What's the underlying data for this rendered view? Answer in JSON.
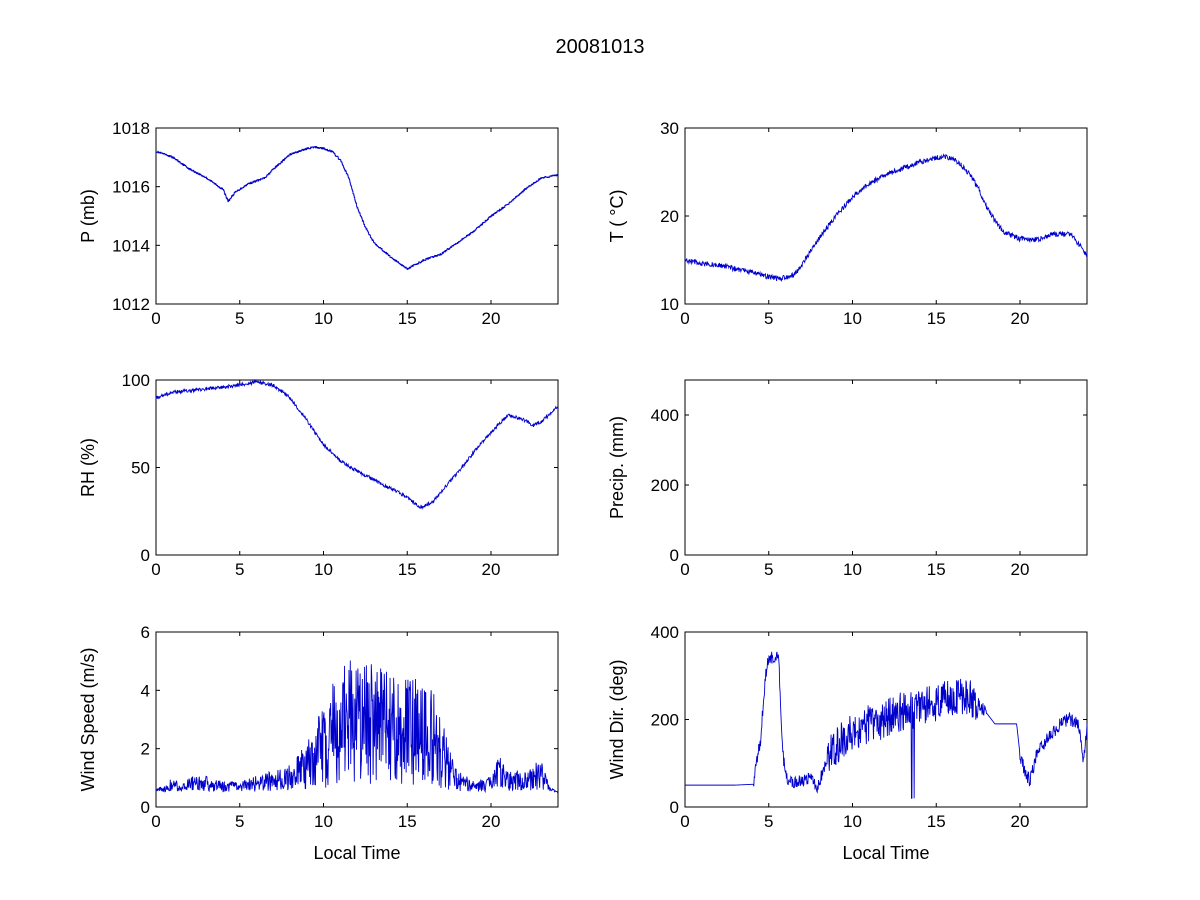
{
  "figure": {
    "title": "20081013",
    "line_color": "#0000cc"
  },
  "chart_data": [
    {
      "id": "pressure",
      "type": "line",
      "xlabel": "",
      "ylabel": "P (mb)",
      "xlim": [
        0,
        24
      ],
      "ylim": [
        1012,
        1018
      ],
      "xticks": [
        0,
        5,
        10,
        15,
        20
      ],
      "yticks": [
        1012,
        1014,
        1016,
        1018
      ],
      "grid": false,
      "noise": 0.03,
      "steps": true,
      "x": [
        0,
        1,
        2,
        3,
        3.5,
        4,
        4.3,
        4.7,
        5.5,
        6,
        6.5,
        7,
        8,
        9,
        9.5,
        10,
        10.5,
        11,
        11.5,
        12,
        12.5,
        13,
        14,
        14.5,
        15,
        15.5,
        16,
        17,
        18,
        19,
        20,
        21,
        22,
        23,
        24
      ],
      "y": [
        1017.2,
        1017.0,
        1016.6,
        1016.3,
        1016.1,
        1015.9,
        1015.5,
        1015.8,
        1016.1,
        1016.2,
        1016.3,
        1016.6,
        1017.1,
        1017.3,
        1017.35,
        1017.3,
        1017.2,
        1016.9,
        1016.3,
        1015.3,
        1014.6,
        1014.1,
        1013.6,
        1013.4,
        1013.2,
        1013.35,
        1013.5,
        1013.7,
        1014.1,
        1014.5,
        1015.0,
        1015.4,
        1015.9,
        1016.3,
        1016.4
      ]
    },
    {
      "id": "temperature",
      "type": "line",
      "xlabel": "",
      "ylabel": "T ( °C)",
      "xlim": [
        0,
        24
      ],
      "ylim": [
        10,
        30
      ],
      "xticks": [
        0,
        5,
        10,
        15,
        20
      ],
      "yticks": [
        10,
        20,
        30
      ],
      "grid": false,
      "noise": 0.3,
      "steps": false,
      "x": [
        0,
        1,
        2,
        3,
        4,
        5,
        5.5,
        6,
        6.5,
        7,
        8,
        9,
        10,
        11,
        12,
        13,
        14,
        15,
        15.5,
        16,
        16.5,
        17,
        17.5,
        18,
        18.5,
        19,
        20,
        21,
        22,
        23,
        24
      ],
      "y": [
        15,
        14.6,
        14.4,
        14.0,
        13.6,
        13.1,
        12.9,
        13.0,
        13.3,
        14.5,
        17.5,
        20.0,
        22.2,
        23.7,
        24.7,
        25.4,
        26.1,
        26.6,
        26.8,
        26.5,
        25.8,
        24.7,
        23.2,
        21.0,
        19.5,
        18.2,
        17.4,
        17.3,
        17.9,
        18.0,
        15.6
      ]
    },
    {
      "id": "humidity",
      "type": "line",
      "xlabel": "",
      "ylabel": "RH (%)",
      "xlim": [
        0,
        24
      ],
      "ylim": [
        0,
        100
      ],
      "xticks": [
        0,
        5,
        10,
        15,
        20
      ],
      "yticks": [
        0,
        50,
        100
      ],
      "grid": false,
      "noise": 1.0,
      "steps": false,
      "x": [
        0,
        1,
        2,
        3,
        4,
        5,
        6,
        7,
        8,
        9,
        10,
        11,
        12,
        13,
        14,
        15,
        15.8,
        16.5,
        17,
        18,
        19,
        20,
        20.5,
        21,
        22,
        22.5,
        23,
        24
      ],
      "y": [
        90,
        93,
        94,
        95,
        96,
        97,
        99,
        97,
        90,
        77,
        63,
        54,
        48,
        43,
        38,
        33,
        27,
        30,
        36,
        47,
        59,
        70,
        75,
        80,
        77,
        74,
        76,
        85
      ]
    },
    {
      "id": "precipitation",
      "type": "line",
      "xlabel": "",
      "ylabel": "Precip. (mm)",
      "xlim": [
        0,
        24
      ],
      "ylim": [
        0,
        500
      ],
      "xticks": [
        0,
        5,
        10,
        15,
        20
      ],
      "yticks": [
        0,
        200,
        400
      ],
      "grid": false,
      "noise": 0,
      "steps": false,
      "x": [],
      "y": []
    },
    {
      "id": "wind_speed",
      "type": "line",
      "xlabel": "Local Time",
      "ylabel": "Wind Speed (m/s)",
      "xlim": [
        0,
        24
      ],
      "ylim": [
        0,
        6
      ],
      "xticks": [
        0,
        5,
        10,
        15,
        20
      ],
      "yticks": [
        0,
        2,
        4,
        6
      ],
      "grid": false,
      "noise": 0.0,
      "steps": false,
      "x": [
        0,
        0.5,
        1,
        1.5,
        2,
        3,
        4,
        5,
        6,
        7,
        8,
        8.5,
        9,
        9.5,
        10,
        10.5,
        11,
        11.5,
        12,
        13,
        14,
        15,
        16,
        16.5,
        17,
        17.5,
        18,
        19,
        20,
        20.5,
        21,
        22,
        23,
        23.5,
        24
      ],
      "y": [
        0.6,
        0.6,
        0.8,
        0.6,
        0.9,
        0.8,
        0.7,
        0.7,
        0.8,
        0.9,
        1.0,
        1.2,
        1.4,
        1.8,
        2.0,
        2.5,
        3.0,
        3.0,
        2.9,
        2.8,
        2.7,
        2.6,
        2.5,
        2.4,
        1.9,
        1.3,
        0.9,
        0.7,
        0.8,
        1.2,
        0.9,
        0.9,
        1.1,
        0.6,
        0.5
      ]
    },
    {
      "id": "wind_direction",
      "type": "line",
      "xlabel": "Local Time",
      "ylabel": "Wind Dir. (deg)",
      "xlim": [
        0,
        24
      ],
      "ylim": [
        0,
        400
      ],
      "xticks": [
        0,
        5,
        10,
        15,
        20
      ],
      "yticks": [
        0,
        200,
        400
      ],
      "grid": false,
      "noise": 0.0,
      "steps": false,
      "x": [
        0,
        1,
        2,
        3,
        4.1,
        4.3,
        4.5,
        4.8,
        5.0,
        5.6,
        5.8,
        6.0,
        6.5,
        7.0,
        7.5,
        7.9,
        8.2,
        8.5,
        9,
        10,
        11,
        12,
        13,
        14,
        15,
        16,
        17,
        17.5,
        18,
        18.5,
        19,
        19.5,
        19.8,
        20.0,
        20.3,
        20.6,
        21,
        21.5,
        22,
        22.5,
        23,
        23.5,
        23.8,
        24
      ],
      "y": [
        50,
        50,
        50,
        50,
        52,
        110,
        150,
        300,
        340,
        340,
        140,
        70,
        55,
        60,
        65,
        40,
        80,
        110,
        140,
        170,
        190,
        200,
        220,
        225,
        240,
        255,
        250,
        235,
        215,
        190,
        190,
        190,
        190,
        120,
        80,
        60,
        120,
        150,
        170,
        195,
        200,
        190,
        100,
        190
      ]
    }
  ]
}
